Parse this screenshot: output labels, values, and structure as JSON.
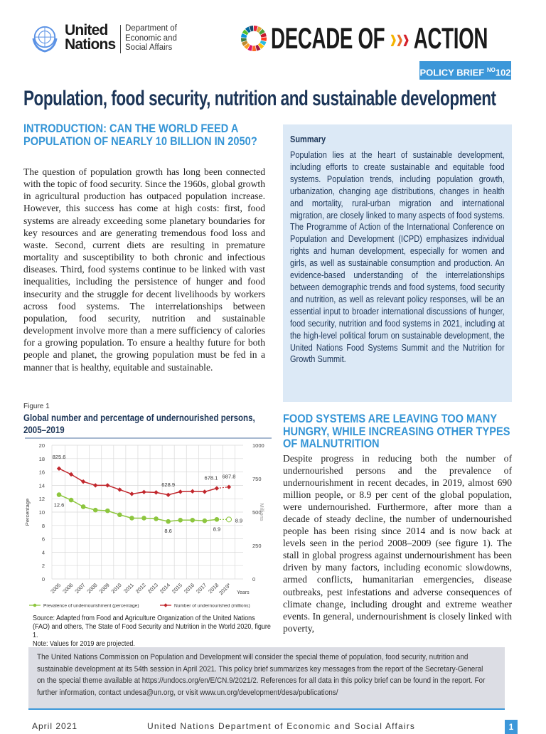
{
  "header": {
    "un_name_line1": "United",
    "un_name_line2": "Nations",
    "dept_line1": "Department of",
    "dept_line2": "Economic and",
    "dept_line3": "Social Affairs",
    "decade_left": "DECADE OF",
    "decade_chevrons": "›››",
    "decade_right": "ACTION",
    "badge_label": "POLICY BRIEF",
    "badge_no": "NO",
    "badge_number": "102",
    "badge_color": "#3c97d9"
  },
  "title": "Population, food security, nutrition and sustainable development",
  "intro": {
    "heading": "INTRODUCTION: CAN THE WORLD FEED A POPULATION OF NEARLY 10 BILLION IN 2050?",
    "body": "The question of population growth has long been connected with the topic of food security. Since the 1960s, global growth in agricultural production has outpaced population increase. However, this success has come at high costs: first, food systems are already exceeding some planetary boundaries for key resources and are generating tremendous food loss and waste. Second, current diets are resulting in premature mortality and susceptibility to both chronic and infectious diseases. Third, food systems continue to be linked with vast inequalities, including the persistence of hunger and food insecurity and the struggle for decent livelihoods by workers across food systems. The interrelationships between population, food security, nutrition and sustainable development involve more than a mere sufficiency of calories for a growing population. To ensure a healthy future for both people and planet, the growing population must be fed in a manner that is healthy, equitable and sustainable."
  },
  "summary": {
    "title": "Summary",
    "body": "Population lies at the heart of sustainable development, including efforts to create sustainable and equitable food systems. Population trends, including population growth, urbanization, changing age distributions, changes in health and mortality, rural-urban migration and international migration, are closely linked to many aspects of food systems. The Programme of Action of the International Conference on Population and Development (ICPD) emphasizes individual rights and human development, especially for women and girls, as well as sustainable consumption and production. An evidence-based understanding of the interrelationships between demographic trends and food systems, food security and nutrition, as well as relevant policy responses, will be an essential input to broader international discussions of hunger, food security, nutrition and food systems in 2021, including at the high-level political forum on sustainable development, the United Nations Food Systems Summit and the Nutrition for Growth Summit."
  },
  "figure": {
    "label": "Figure 1",
    "title": "Global number and percentage of undernourished persons, 2005–2019",
    "source": "Source: Adapted from Food and Agriculture Organization of the United Nations (FAO) and others, The State of Food Security and Nutrition in the World 2020, figure 1.",
    "note": "Note: Values for 2019 are projected."
  },
  "chart_data": {
    "type": "line",
    "categories": [
      "2005",
      "2006",
      "2007",
      "2008",
      "2009",
      "2010",
      "2011",
      "2012",
      "2013",
      "2014",
      "2015",
      "2016",
      "2017",
      "2018",
      "2019*"
    ],
    "xlabel": "Years",
    "ylabel": "Percentage",
    "y2label": "Millions",
    "ylim": [
      0,
      20
    ],
    "y2lim": [
      0,
      1000
    ],
    "yticks": [
      "0",
      "2",
      "4",
      "6",
      "8",
      "10",
      "12",
      "14",
      "16",
      "18",
      "20"
    ],
    "y2ticks": [
      "0",
      "250",
      "500",
      "750",
      "1000"
    ],
    "grid": true,
    "legend_position": "bottom",
    "series": [
      {
        "name": "Prevalence of undernourishment (percentage)",
        "axis": "left",
        "color": "#8dc63f",
        "values": [
          12.6,
          11.8,
          10.8,
          10.3,
          10.2,
          9.6,
          9.1,
          9.1,
          9.0,
          8.6,
          8.8,
          8.8,
          8.7,
          8.9,
          8.9
        ],
        "labels": {
          "0": "12.6",
          "9": "8.6",
          "13": "8.9",
          "14": "8.9"
        }
      },
      {
        "name": "Number of undernourished (millions)",
        "axis": "right",
        "color": "#c1272d",
        "values": [
          825.6,
          782,
          728,
          700,
          700,
          668,
          636,
          650,
          647,
          628.9,
          652,
          655,
          652,
          678.1,
          687.8
        ],
        "labels": {
          "0": "825.6",
          "9": "628.9",
          "13": "678.1",
          "14": "687.8"
        }
      }
    ]
  },
  "food": {
    "heading": "FOOD SYSTEMS ARE LEAVING TOO MANY HUNGRY, WHILE INCREASING OTHER TYPES OF MALNUTRITION",
    "body": "Despite progress in reducing both the number of undernourished persons and the prevalence of undernourishment in recent decades, in 2019, almost 690 million people, or 8.9 per cent of the global population, were undernourished.  Furthermore, after more than a decade of steady decline, the number of undernourished people has been rising since 2014 and is now back at levels seen in the period 2008–2009 (see figure 1). The stall in global progress against undernourishment has been driven by many factors, including economic slowdowns, armed conflicts, humanitarian emergencies, disease outbreaks, pest infestations and adverse consequences of climate change, including drought and extreme weather events. In general, undernourishment is closely linked with poverty,"
  },
  "note_box": "The United Nations Commission on Population and Development will consider the special theme of population, food security, nutrition and sustainable development at its 54th session in April 2021. This policy brief summarizes key messages from the report of the Secretary-General on the special theme available at https://undocs.org/en/E/CN.9/2021/2. References for all data in this policy brief can be found in the report. For further information, contact undesa@un.org, or visit www.un.org/development/desa/publications/",
  "footer": {
    "date": "April 2021",
    "org": "United Nations Department of Economic and Social Affairs",
    "page": "1"
  }
}
